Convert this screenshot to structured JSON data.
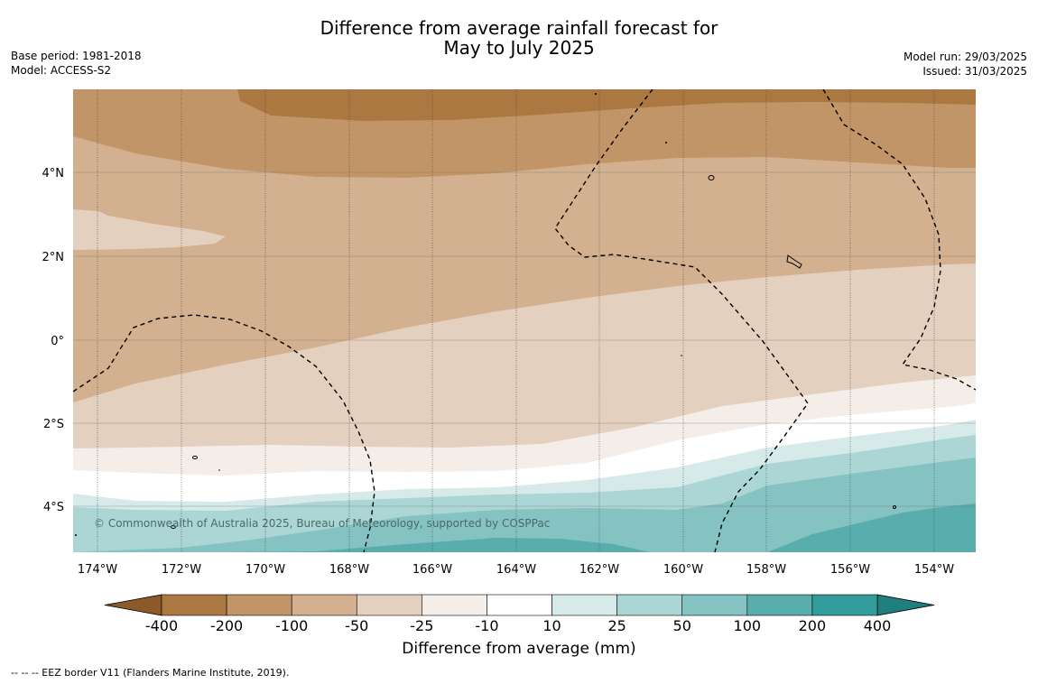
{
  "title_line1": "Difference from average rainfall forecast for",
  "title_line2": "May to July 2025",
  "base_period": "Base period: 1981-2018",
  "model": "Model: ACCESS-S2",
  "model_run": "Model run: 29/03/2025",
  "issued": "Issued: 31/03/2025",
  "copyright": "© Commonwealth of Australia 2025, Bureau of Meteorology, supported by COSPPac",
  "lon_labels": [
    "174°W",
    "172°W",
    "170°W",
    "168°W",
    "166°W",
    "164°W",
    "162°W",
    "160°W",
    "158°W",
    "156°W",
    "154°W"
  ],
  "lat_labels": [
    "4°N",
    "2°N",
    "0°",
    "2°S",
    "4°S"
  ],
  "colorbar": {
    "ticks": [
      "-400",
      "-200",
      "-100",
      "-50",
      "-25",
      "-10",
      "10",
      "25",
      "50",
      "100",
      "200",
      "400"
    ],
    "colors": [
      "#8a5a2b",
      "#ab7841",
      "#c29568",
      "#d3b08f",
      "#e3d0bf",
      "#f5ede8",
      "#ffffff",
      "#d6eaea",
      "#acd6d6",
      "#85c2c2",
      "#5aadad",
      "#329b9b",
      "#1f7e7e"
    ],
    "label": "Difference from average (mm)"
  },
  "footnote": "-- -- -- EEZ border V11 (Flanders Marine Institute, 2019)."
}
